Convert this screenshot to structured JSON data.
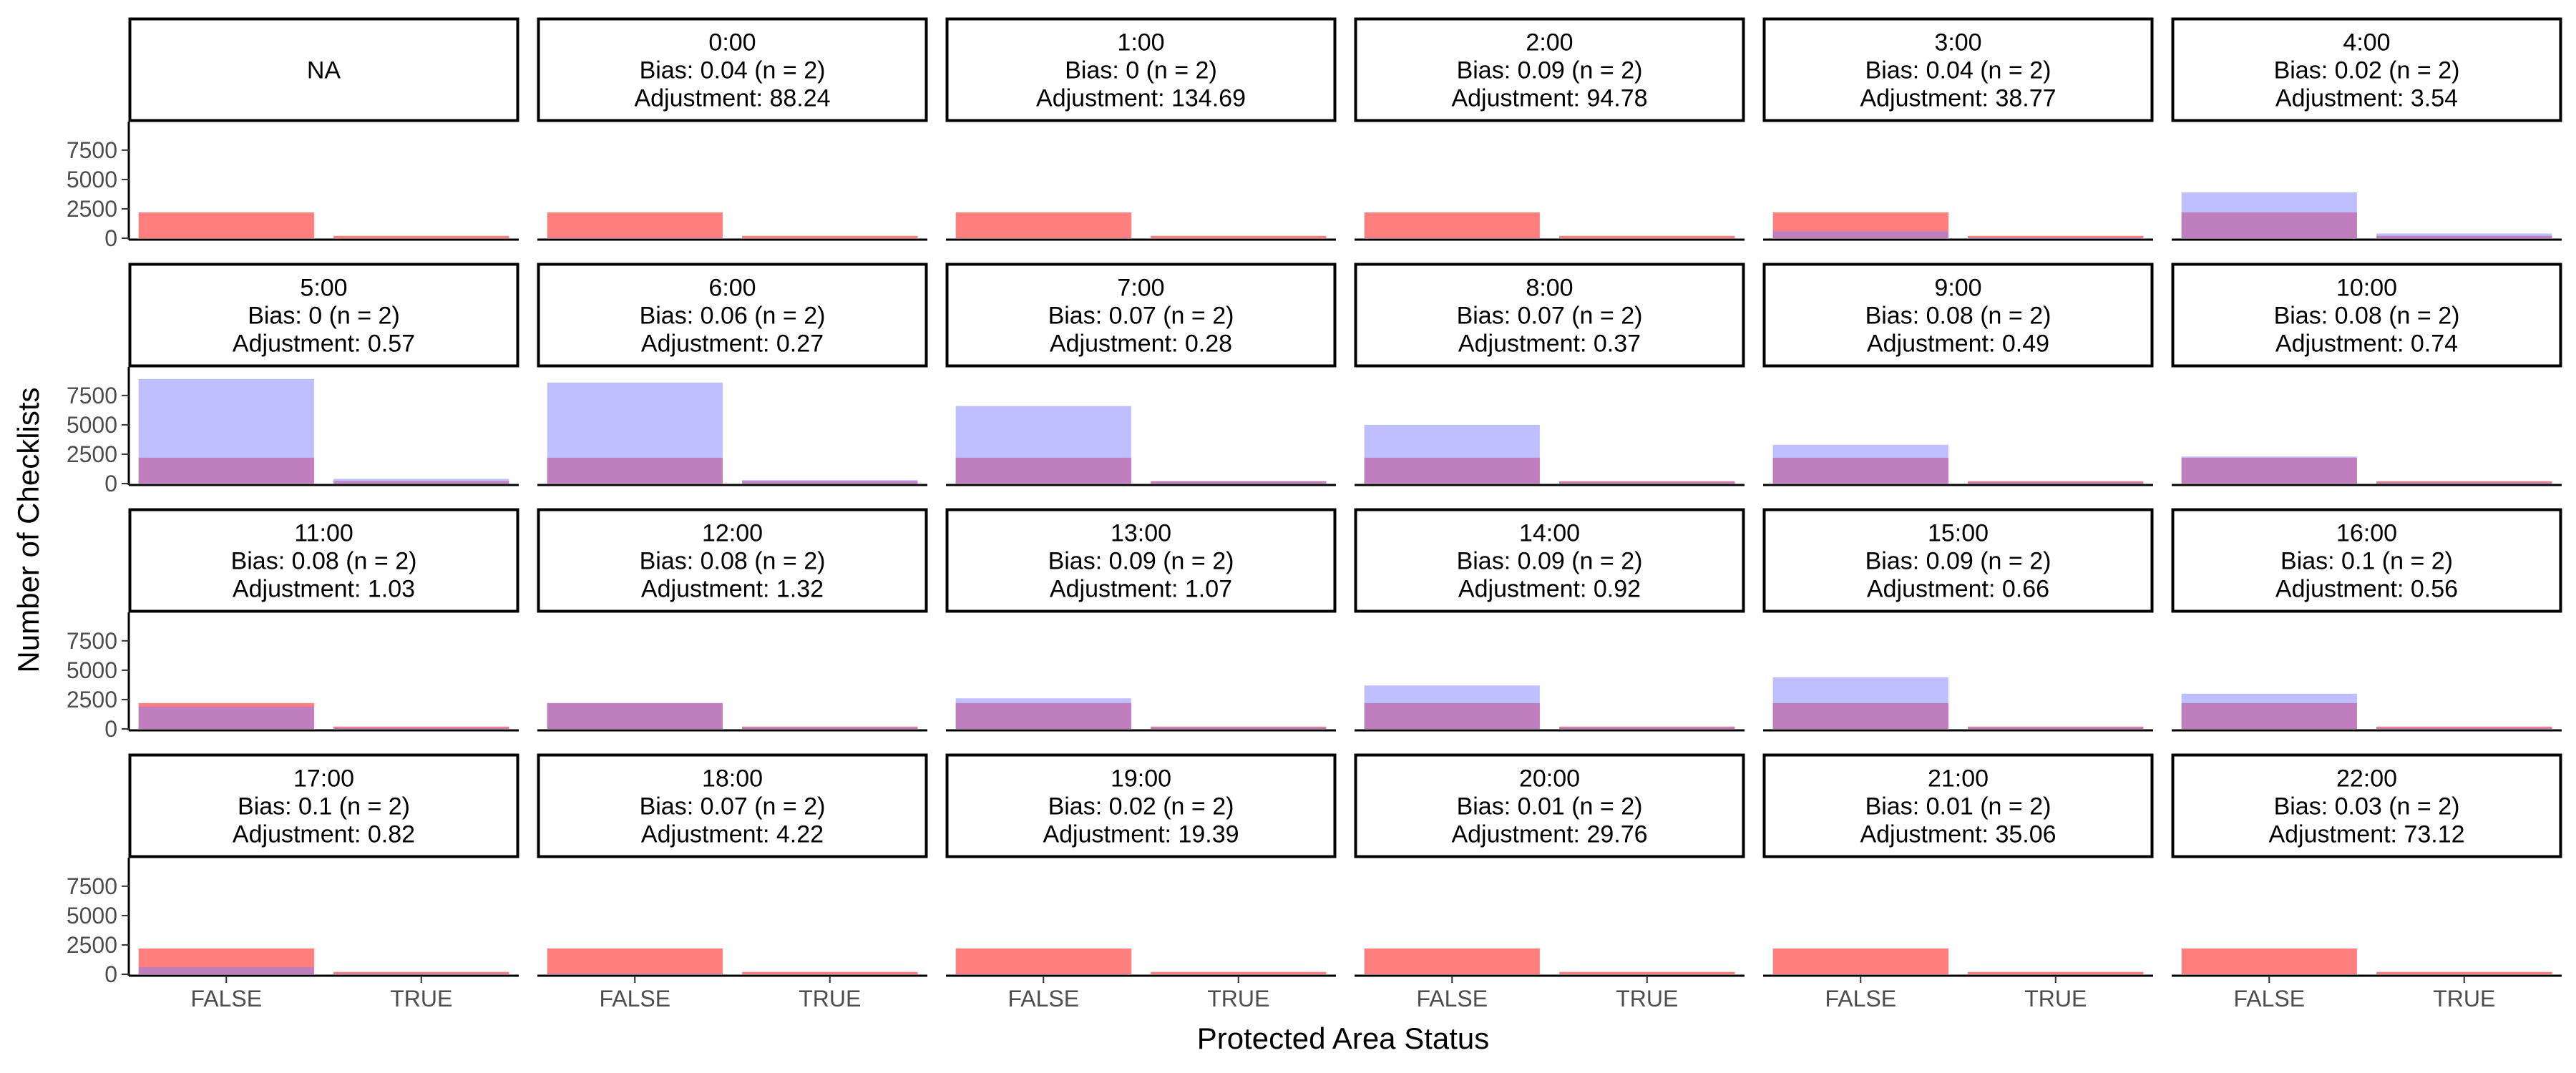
{
  "chart_data": {
    "type": "bar",
    "xlabel": "Protected Area Status",
    "ylabel": "Number of Checklists",
    "categories": [
      "FALSE",
      "TRUE"
    ],
    "ylim": [
      0,
      9500
    ],
    "yticks": [
      0,
      2500,
      5000,
      7500
    ],
    "grid": false,
    "legend": "none",
    "colors": {
      "series_a": "#FF7F7F",
      "series_b": "#7F7FFF",
      "overlap": "#C0407F",
      "strip_border": "#000000"
    },
    "panels": [
      {
        "label": "NA",
        "bias": "",
        "adjustment": "",
        "series_a": [
          2200,
          200
        ],
        "series_b": [
          0,
          0
        ]
      },
      {
        "label": "0:00",
        "bias": "Bias: 0.04 (n = 2)",
        "adjustment": "Adjustment: 88.24",
        "series_a": [
          2200,
          200
        ],
        "series_b": [
          30,
          3
        ]
      },
      {
        "label": "1:00",
        "bias": "Bias: 0 (n = 2)",
        "adjustment": "Adjustment: 134.69",
        "series_a": [
          2200,
          200
        ],
        "series_b": [
          20,
          2
        ]
      },
      {
        "label": "2:00",
        "bias": "Bias: 0.09 (n = 2)",
        "adjustment": "Adjustment: 94.78",
        "series_a": [
          2200,
          200
        ],
        "series_b": [
          25,
          2
        ]
      },
      {
        "label": "3:00",
        "bias": "Bias: 0.04 (n = 2)",
        "adjustment": "Adjustment: 38.77",
        "series_a": [
          2200,
          200
        ],
        "series_b": [
          600,
          60
        ]
      },
      {
        "label": "4:00",
        "bias": "Bias: 0.02 (n = 2)",
        "adjustment": "Adjustment: 3.54",
        "series_a": [
          2200,
          200
        ],
        "series_b": [
          3900,
          400
        ]
      },
      {
        "label": "5:00",
        "bias": "Bias: 0 (n = 2)",
        "adjustment": "Adjustment: 0.57",
        "series_a": [
          2200,
          200
        ],
        "series_b": [
          8900,
          400
        ]
      },
      {
        "label": "6:00",
        "bias": "Bias: 0.06 (n = 2)",
        "adjustment": "Adjustment: 0.27",
        "series_a": [
          2200,
          200
        ],
        "series_b": [
          8600,
          300
        ]
      },
      {
        "label": "7:00",
        "bias": "Bias: 0.07 (n = 2)",
        "adjustment": "Adjustment: 0.28",
        "series_a": [
          2200,
          200
        ],
        "series_b": [
          6600,
          200
        ]
      },
      {
        "label": "8:00",
        "bias": "Bias: 0.07 (n = 2)",
        "adjustment": "Adjustment: 0.37",
        "series_a": [
          2200,
          200
        ],
        "series_b": [
          5000,
          150
        ]
      },
      {
        "label": "9:00",
        "bias": "Bias: 0.08 (n = 2)",
        "adjustment": "Adjustment: 0.49",
        "series_a": [
          2200,
          200
        ],
        "series_b": [
          3300,
          120
        ]
      },
      {
        "label": "10:00",
        "bias": "Bias: 0.08 (n = 2)",
        "adjustment": "Adjustment: 0.74",
        "series_a": [
          2200,
          200
        ],
        "series_b": [
          2300,
          100
        ]
      },
      {
        "label": "11:00",
        "bias": "Bias: 0.08 (n = 2)",
        "adjustment": "Adjustment: 1.03",
        "series_a": [
          2200,
          200
        ],
        "series_b": [
          1900,
          100
        ]
      },
      {
        "label": "12:00",
        "bias": "Bias: 0.08 (n = 2)",
        "adjustment": "Adjustment: 1.32",
        "series_a": [
          2200,
          200
        ],
        "series_b": [
          2200,
          150
        ]
      },
      {
        "label": "13:00",
        "bias": "Bias: 0.09 (n = 2)",
        "adjustment": "Adjustment: 1.07",
        "series_a": [
          2200,
          200
        ],
        "series_b": [
          2600,
          150
        ]
      },
      {
        "label": "14:00",
        "bias": "Bias: 0.09 (n = 2)",
        "adjustment": "Adjustment: 0.92",
        "series_a": [
          2200,
          200
        ],
        "series_b": [
          3700,
          150
        ]
      },
      {
        "label": "15:00",
        "bias": "Bias: 0.09 (n = 2)",
        "adjustment": "Adjustment: 0.66",
        "series_a": [
          2200,
          200
        ],
        "series_b": [
          4400,
          150
        ]
      },
      {
        "label": "16:00",
        "bias": "Bias: 0.1 (n = 2)",
        "adjustment": "Adjustment: 0.56",
        "series_a": [
          2200,
          200
        ],
        "series_b": [
          3000,
          100
        ]
      },
      {
        "label": "17:00",
        "bias": "Bias: 0.1 (n = 2)",
        "adjustment": "Adjustment: 0.82",
        "series_a": [
          2200,
          200
        ],
        "series_b": [
          600,
          50
        ]
      },
      {
        "label": "18:00",
        "bias": "Bias: 0.07 (n = 2)",
        "adjustment": "Adjustment: 4.22",
        "series_a": [
          2200,
          200
        ],
        "series_b": [
          60,
          10
        ]
      },
      {
        "label": "19:00",
        "bias": "Bias: 0.02 (n = 2)",
        "adjustment": "Adjustment: 19.39",
        "series_a": [
          2200,
          200
        ],
        "series_b": [
          30,
          5
        ]
      },
      {
        "label": "20:00",
        "bias": "Bias: 0.01 (n = 2)",
        "adjustment": "Adjustment: 29.76",
        "series_a": [
          2200,
          200
        ],
        "series_b": [
          20,
          3
        ]
      },
      {
        "label": "21:00",
        "bias": "Bias: 0.01 (n = 2)",
        "adjustment": "Adjustment: 35.06",
        "series_a": [
          2200,
          200
        ],
        "series_b": [
          20,
          3
        ]
      },
      {
        "label": "22:00",
        "bias": "Bias: 0.03 (n = 2)",
        "adjustment": "Adjustment: 73.12",
        "series_a": [
          2200,
          200
        ],
        "series_b": [
          20,
          3
        ]
      }
    ]
  }
}
